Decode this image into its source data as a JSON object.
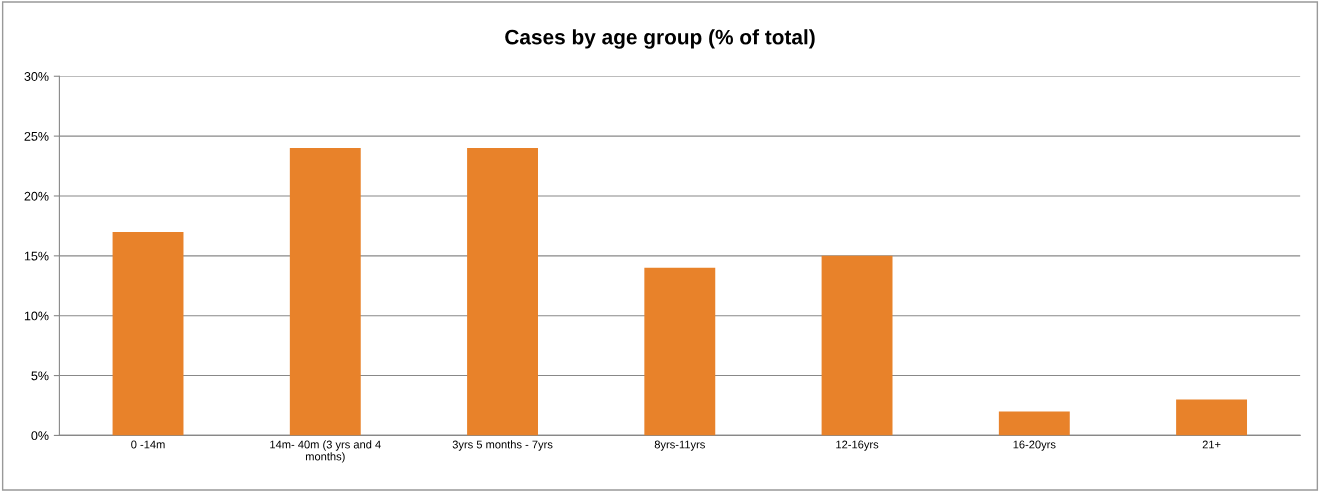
{
  "chart_data": {
    "type": "bar",
    "title": "Cases by age group (% of total)",
    "categories": [
      "0 -14m",
      "14m- 40m (3 yrs and 4\nmonths)",
      "3yrs 5 months - 7yrs",
      "8yrs-11yrs",
      "12-16yrs",
      "16-20yrs",
      "21+"
    ],
    "values": [
      17,
      24,
      24,
      14,
      15,
      2,
      3
    ],
    "color": "#e8822a",
    "ylim": [
      0,
      30
    ],
    "yticks": [
      {
        "value": 0,
        "label": "0%"
      },
      {
        "value": 5,
        "label": "5%"
      },
      {
        "value": 10,
        "label": "10%"
      },
      {
        "value": 15,
        "label": "15%"
      },
      {
        "value": 20,
        "label": "20%"
      },
      {
        "value": 25,
        "label": "25%"
      },
      {
        "value": 30,
        "label": "30%"
      }
    ],
    "grid": "y"
  }
}
